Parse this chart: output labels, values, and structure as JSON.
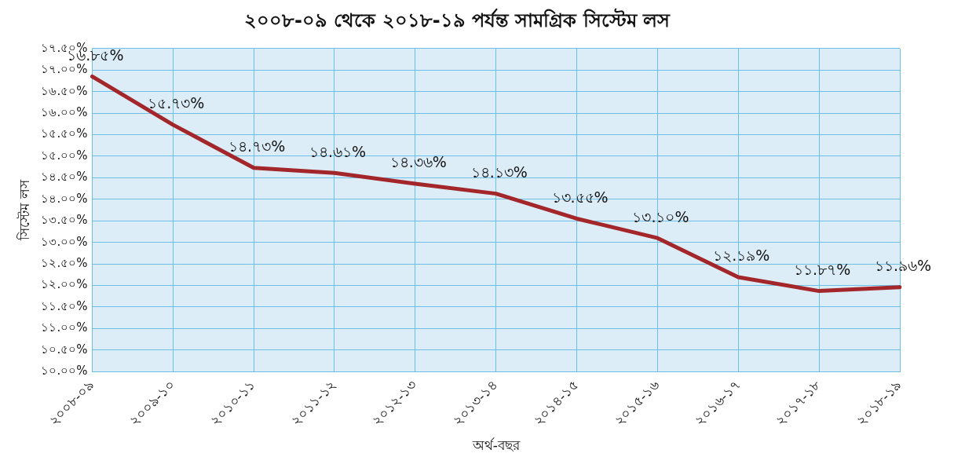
{
  "chart_data": {
    "type": "line",
    "title": "২০০৮-০৯ থেকে ২০১৮-১৯ পর্যন্ত সামগ্রিক সিস্টেম লস",
    "xlabel": "অর্থ-বছর",
    "ylabel": "সিস্টেম লস",
    "categories": [
      "২০০৮-০৯",
      "২০০৯-১০",
      "২০১০-১১",
      "২০১১-১২",
      "২০১২-১৩",
      "২০১৩-১৪",
      "২০১৪-১৫",
      "২০১৫-১৬",
      "২০১৬-১৭",
      "২০১৭-১৮",
      "২০১৮-১৯"
    ],
    "series": [
      {
        "color": "#a3262a",
        "values": [
          16.85,
          15.73,
          14.73,
          14.61,
          14.36,
          14.13,
          13.55,
          13.1,
          12.19,
          11.87,
          11.96
        ],
        "value_labels": [
          "১৬.৮৫%",
          "১৫.৭৩%",
          "১৪.৭৩%",
          "১৪.৬১%",
          "১৪.৩৬%",
          "১৪.১৩%",
          "১৩.৫৫%",
          "১৩.১০%",
          "১২.১৯%",
          "১১.৮৭%",
          "১১.৯৬%"
        ]
      }
    ],
    "ylim": [
      10,
      17.5
    ],
    "yticks": [
      {
        "value": 10,
        "label": "১০.০০%"
      },
      {
        "value": 10.5,
        "label": "১০.৫০%"
      },
      {
        "value": 11,
        "label": "১১.০০%"
      },
      {
        "value": 11.5,
        "label": "১১.৫০%"
      },
      {
        "value": 12,
        "label": "১২.০০%"
      },
      {
        "value": 12.5,
        "label": "১২.৫০%"
      },
      {
        "value": 13,
        "label": "১৩.০০%"
      },
      {
        "value": 13.5,
        "label": "১৩.৫০%"
      },
      {
        "value": 14,
        "label": "১৪.০০%"
      },
      {
        "value": 14.5,
        "label": "১৪.৫০%"
      },
      {
        "value": 15,
        "label": "১৫.০০%"
      },
      {
        "value": 15.5,
        "label": "১৫.৫০%"
      },
      {
        "value": 16,
        "label": "১৬.০০%"
      },
      {
        "value": 16.5,
        "label": "১৬.৫০%"
      },
      {
        "value": 17,
        "label": "১৭.০০%"
      },
      {
        "value": 17.5,
        "label": "১৭.৫০%"
      }
    ],
    "grid": true,
    "legend": false,
    "marker": "none",
    "line_style": "solid"
  }
}
